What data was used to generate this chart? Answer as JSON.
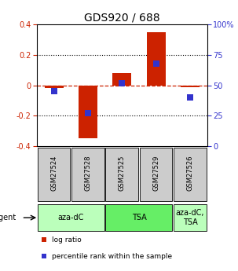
{
  "title": "GDS920 / 688",
  "samples": [
    "GSM27524",
    "GSM27528",
    "GSM27525",
    "GSM27529",
    "GSM27526"
  ],
  "log_ratios": [
    -0.02,
    -0.35,
    0.08,
    0.35,
    -0.01
  ],
  "percentile_ranks": [
    45,
    27,
    52,
    68,
    40
  ],
  "ylim_left": [
    -0.4,
    0.4
  ],
  "ylim_right": [
    0,
    100
  ],
  "yticks_left": [
    -0.4,
    -0.2,
    0.0,
    0.2,
    0.4
  ],
  "yticks_right": [
    0,
    25,
    50,
    75,
    100
  ],
  "bar_color": "#cc2200",
  "dot_color": "#3333cc",
  "agent_groups": [
    {
      "label": "aza-dC",
      "span": [
        0,
        2
      ],
      "color": "#bbffbb"
    },
    {
      "label": "TSA",
      "span": [
        2,
        4
      ],
      "color": "#66ee66"
    },
    {
      "label": "aza-dC,\nTSA",
      "span": [
        4,
        5
      ],
      "color": "#bbffbb"
    }
  ],
  "agent_label": "agent",
  "legend_items": [
    {
      "color": "#cc2200",
      "label": "log ratio"
    },
    {
      "color": "#3333cc",
      "label": "percentile rank within the sample"
    }
  ],
  "sample_box_color": "#cccccc",
  "dotted_line_color": "#000000",
  "zero_line_color": "#cc2200",
  "bar_width": 0.55,
  "dot_size": 40
}
